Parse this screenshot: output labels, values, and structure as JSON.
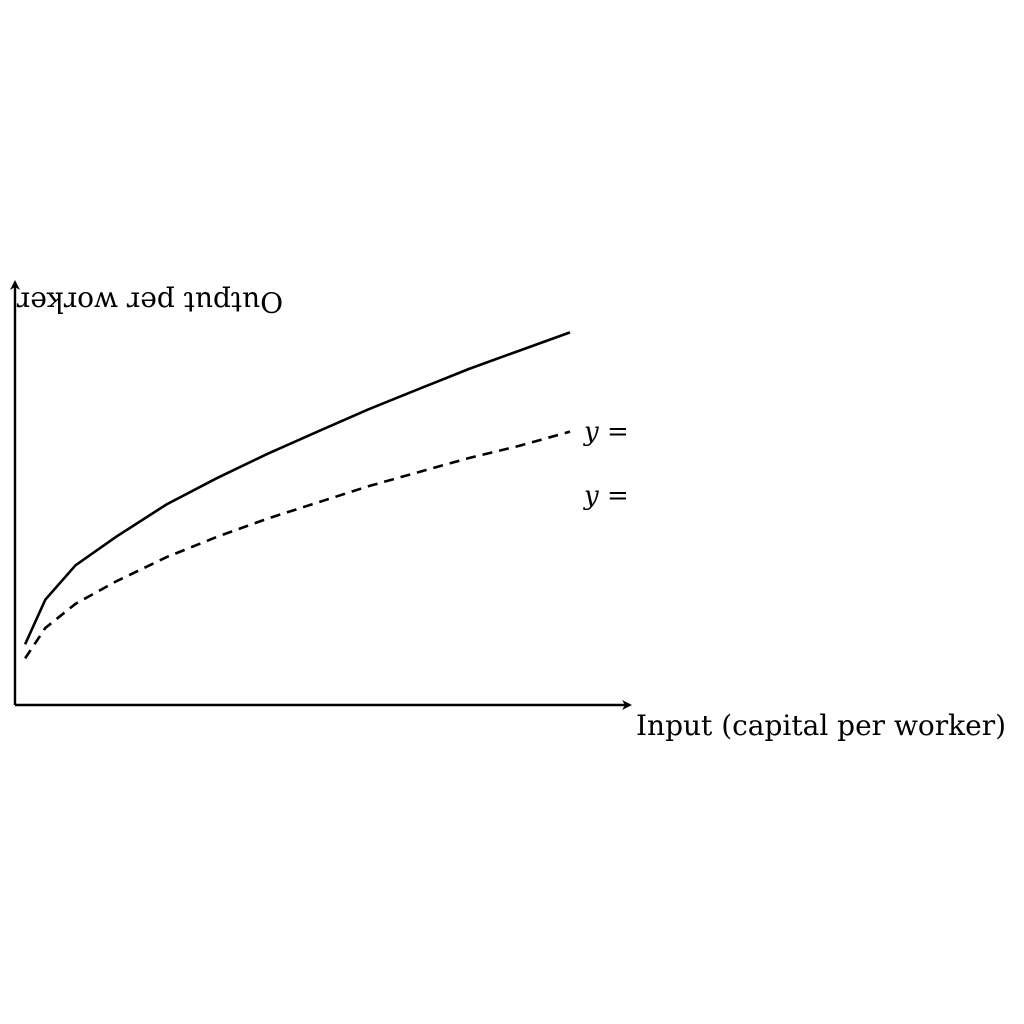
{
  "chart_data": {
    "type": "line",
    "xlabel": "Input (capital per worker)",
    "ylabel": "Output per worker",
    "xlim": [
      0,
      5.5
    ],
    "ylim": [
      0,
      2.0
    ],
    "grid": false,
    "series": [
      {
        "style": "solid",
        "label": "y =",
        "x": [
          0.1,
          0.3,
          0.6,
          1.0,
          1.5,
          2.0,
          2.5,
          3.0,
          3.5,
          4.0,
          4.5,
          5.0,
          5.5
        ],
        "y": [
          0.3,
          0.52,
          0.69,
          0.83,
          0.99,
          1.12,
          1.24,
          1.35,
          1.46,
          1.56,
          1.66,
          1.75,
          1.84
        ]
      },
      {
        "style": "dashed",
        "label": "y =",
        "x": [
          0.1,
          0.3,
          0.6,
          1.0,
          1.5,
          2.0,
          2.5,
          3.0,
          3.5,
          4.0,
          4.5,
          5.0,
          5.5
        ],
        "y": [
          0.23,
          0.38,
          0.5,
          0.61,
          0.73,
          0.83,
          0.92,
          1.0,
          1.08,
          1.15,
          1.22,
          1.28,
          1.35
        ]
      }
    ]
  }
}
